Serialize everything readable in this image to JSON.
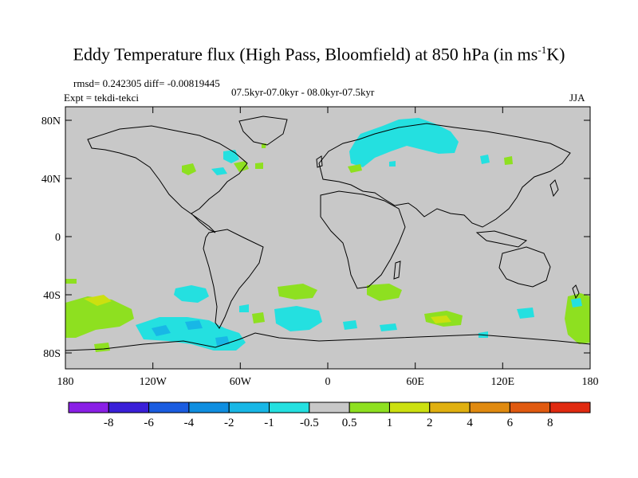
{
  "title": {
    "prefix": "Eddy Temperature flux (High Pass, Bloomfield) at 850 hPa (in ms",
    "sup": "-1",
    "suffix": "K)"
  },
  "stats": "rmsd= 0.242305 diff= -0.00819445",
  "experiment": "Expt = tekdi-tekci",
  "period": "07.5kyr-07.0kyr - 08.0kyr-07.5kyr",
  "season": "JJA",
  "lat_ticks": [
    "80N",
    "40N",
    "0",
    "40S",
    "80S"
  ],
  "lon_ticks": [
    "180",
    "120W",
    "60W",
    "0",
    "60E",
    "120E",
    "180"
  ],
  "colorbar": {
    "labels": [
      "-8",
      "-6",
      "-4",
      "-2",
      "-1",
      "-0.5",
      "0.5",
      "1",
      "2",
      "4",
      "6",
      "8"
    ],
    "colors": [
      "#8a1fe6",
      "#3a1fd8",
      "#1a5ce0",
      "#0f8ee0",
      "#18b7e6",
      "#24e0e0",
      "#c8c8c8",
      "#8ee020",
      "#cce010",
      "#e0b010",
      "#e08a10",
      "#e05a10",
      "#e02a10"
    ]
  },
  "map_background": "#c8c8c8",
  "anomaly_colors": {
    "cyan": "#24e0e0",
    "light_blue": "#18b7e6",
    "green": "#8ee020",
    "yellow": "#cce010"
  }
}
